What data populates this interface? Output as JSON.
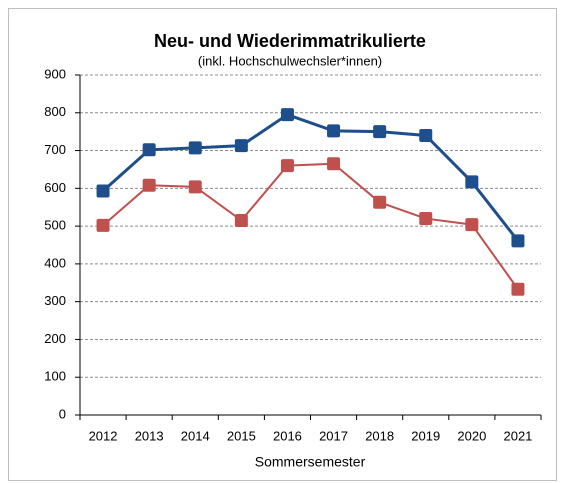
{
  "chart_data": {
    "type": "line",
    "title": "Neu- und Wiederimmatrikulierte",
    "subtitle": "(inkl. Hochschulwechsler*innen)",
    "x_label": "Sommersemester",
    "categories": [
      "2012",
      "2013",
      "2014",
      "2015",
      "2016",
      "2017",
      "2018",
      "2019",
      "2020",
      "2021"
    ],
    "series": [
      {
        "color": "#1f4e8c",
        "values": [
          593,
          702,
          707,
          713,
          795,
          752,
          750,
          740,
          617,
          461
        ]
      },
      {
        "color": "#c0504d",
        "values": [
          502,
          608,
          604,
          515,
          660,
          665,
          563,
          520,
          504,
          333
        ]
      }
    ],
    "ylim": [
      0,
      900
    ],
    "yticks": [
      0,
      100,
      200,
      300,
      400,
      500,
      600,
      700,
      800,
      900
    ],
    "grid": true
  }
}
